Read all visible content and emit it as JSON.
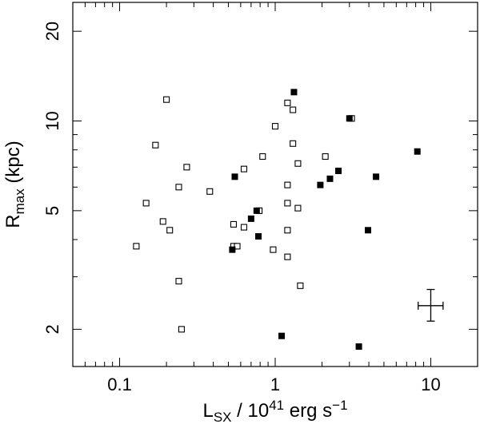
{
  "chart_data": {
    "type": "scatter",
    "xlabel": "L_SX / 10^41 erg s^-1",
    "xlabel_parts": {
      "main": "L",
      "sub": "SX",
      "mid": " / 10",
      "sup": "41",
      "tail": " erg s",
      "sup2": "−1"
    },
    "ylabel": "R_max (kpc)",
    "ylabel_parts": {
      "main": "R",
      "sub": "max",
      "tail": " (kpc)"
    },
    "x_scale": "log",
    "y_scale": "log",
    "xlim": [
      0.05,
      20
    ],
    "ylim": [
      1.5,
      25
    ],
    "x_ticks": [
      {
        "value": 0.1,
        "label": "0.1"
      },
      {
        "value": 1,
        "label": "1"
      },
      {
        "value": 10,
        "label": "10"
      }
    ],
    "y_ticks": [
      {
        "value": 2,
        "label": "2"
      },
      {
        "value": 5,
        "label": "5"
      },
      {
        "value": 10,
        "label": "10"
      },
      {
        "value": 20,
        "label": "20"
      }
    ],
    "grid": false,
    "legend": "none",
    "filled_points": [
      {
        "x": 0.55,
        "y": 6.5
      },
      {
        "x": 0.53,
        "y": 3.7
      },
      {
        "x": 0.7,
        "y": 4.7
      },
      {
        "x": 0.76,
        "y": 5.0
      },
      {
        "x": 0.78,
        "y": 4.1
      },
      {
        "x": 1.1,
        "y": 1.9
      },
      {
        "x": 1.32,
        "y": 12.5
      },
      {
        "x": 1.95,
        "y": 6.1
      },
      {
        "x": 2.25,
        "y": 6.4
      },
      {
        "x": 2.55,
        "y": 6.8
      },
      {
        "x": 3.0,
        "y": 10.2
      },
      {
        "x": 3.45,
        "y": 1.75
      },
      {
        "x": 3.95,
        "y": 4.3
      },
      {
        "x": 4.45,
        "y": 6.5
      },
      {
        "x": 8.2,
        "y": 7.9
      }
    ],
    "open_points": [
      {
        "x": 0.128,
        "y": 3.8
      },
      {
        "x": 0.148,
        "y": 5.3
      },
      {
        "x": 0.17,
        "y": 8.3
      },
      {
        "x": 0.19,
        "y": 4.6
      },
      {
        "x": 0.2,
        "y": 11.8
      },
      {
        "x": 0.21,
        "y": 4.3
      },
      {
        "x": 0.24,
        "y": 6.0
      },
      {
        "x": 0.24,
        "y": 2.9
      },
      {
        "x": 0.25,
        "y": 2.0
      },
      {
        "x": 0.27,
        "y": 7.0
      },
      {
        "x": 0.38,
        "y": 5.8
      },
      {
        "x": 0.54,
        "y": 4.5
      },
      {
        "x": 0.54,
        "y": 3.8
      },
      {
        "x": 0.57,
        "y": 3.8
      },
      {
        "x": 0.63,
        "y": 4.4
      },
      {
        "x": 0.63,
        "y": 6.9
      },
      {
        "x": 0.79,
        "y": 5.0
      },
      {
        "x": 0.83,
        "y": 7.6
      },
      {
        "x": 0.97,
        "y": 3.7
      },
      {
        "x": 1.0,
        "y": 9.6
      },
      {
        "x": 1.2,
        "y": 11.5
      },
      {
        "x": 1.2,
        "y": 6.1
      },
      {
        "x": 1.2,
        "y": 5.3
      },
      {
        "x": 1.2,
        "y": 4.3
      },
      {
        "x": 1.2,
        "y": 3.5
      },
      {
        "x": 1.3,
        "y": 10.9
      },
      {
        "x": 1.3,
        "y": 8.4
      },
      {
        "x": 1.4,
        "y": 7.2
      },
      {
        "x": 1.4,
        "y": 5.1
      },
      {
        "x": 1.45,
        "y": 2.8
      },
      {
        "x": 2.1,
        "y": 7.6
      },
      {
        "x": 3.1,
        "y": 10.2
      }
    ],
    "error_bar": {
      "x": 10.0,
      "y": 2.4,
      "x_low": 8.3,
      "x_high": 12.0,
      "y_low": 2.13,
      "y_high": 2.72
    }
  }
}
